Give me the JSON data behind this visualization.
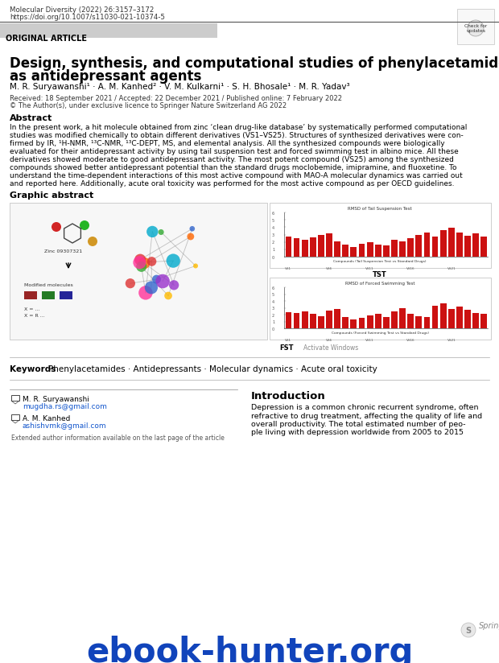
{
  "journal_line1": "Molecular Diversity (2022) 26:3157–3172",
  "journal_line2": "https://doi.org/10.1007/s11030-021-10374-5",
  "article_type": "ORIGINAL ARTICLE",
  "title_line1": "Design, synthesis, and computational studies of phenylacetamides",
  "title_line2": "as antidepressant agents",
  "authors": "M. R. Suryawanshi¹ · A. M. Kanhed² · V. M. Kulkarni¹ · S. H. Bhosale¹ · M. R. Yadav³",
  "received": "Received: 18 September 2021 / Accepted: 22 December 2021 / Published online: 7 February 2022",
  "copyright": "© The Author(s), under exclusive licence to Springer Nature Switzerland AG 2022",
  "abstract_title": "Abstract",
  "abstract_text": "In the present work, a hit molecule obtained from zinc ‘clean drug-like database’ by systematically performed computational\nstudies was modified chemically to obtain different derivatives (VS1–VS25). Structures of synthesized derivatives were con-\nfirmed by IR, ¹H-NMR, ¹³C-NMR, ¹³C-DEPT, MS, and elemental analysis. All the synthesized compounds were biologically\nevaluated for their antidepressant activity by using tail suspension test and forced swimming test in albino mice. All these\nderivatives showed moderate to good antidepressant activity. The most potent compound (VS25) among the synthesized\ncompounds showed better antidepressant potential than the standard drugs moclobemide, imipramine, and fluoxetine. To\nunderstand the time-dependent interactions of this most active compound with MAO-A molecular dynamics was carried out\nand reported here. Additionally, acute oral toxicity was performed for the most active compound as per OECD guidelines.",
  "graphic_abstract": "Graphic abstract",
  "keywords_label": "Keywords",
  "keywords": "Phenylacetamides · Antidepressants · Molecular dynamics · Acute oral toxicity",
  "intro_title": "Introduction",
  "intro_text": "Depression is a common chronic recurrent syndrome, often\nrefractive to drug treatment, affecting the quality of life and\noverall productivity. The total estimated number of peo-\nple living with depression worldwide from 2005 to 2015",
  "email1_name": "M. R. Suryawanshi",
  "email1": "mugdha.rs@gmail.com",
  "email2_name": "A. M. Kanhed",
  "email2": "ashishvmk@gmail.com",
  "extended_info": "Extended author information available on the last page of the article",
  "watermark": "ebook-hunter.org",
  "springer_logo": "Springer",
  "tst_chart_title": "RMSD of Tail Suspension Test",
  "fst_chart_title": "RMSD of Forced Swimming Test",
  "activate_windows": "Activate Windows",
  "zinc_label": "Zinc 09307321",
  "modified_label": "Modified molecules",
  "bg_color": "#ffffff"
}
